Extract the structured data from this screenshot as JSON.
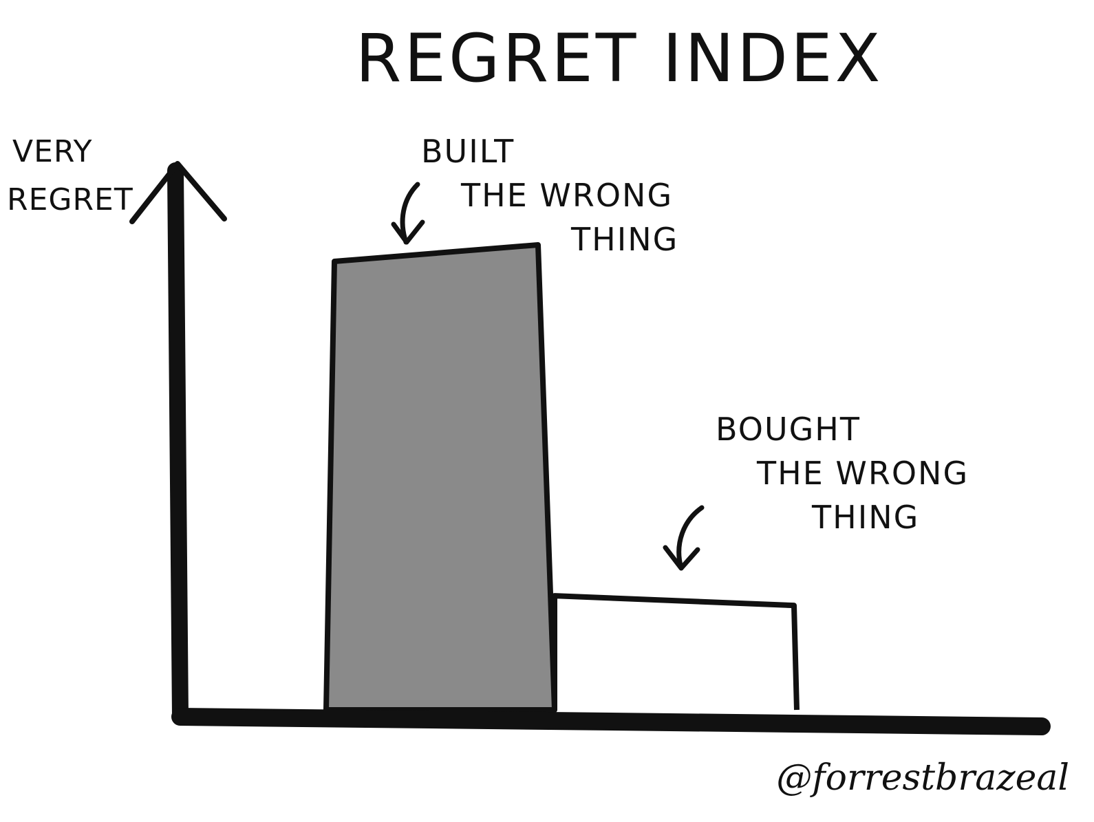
{
  "chart_data": {
    "type": "bar",
    "title": "REGRET INDEX",
    "ylabel": [
      "VERY",
      "REGRET"
    ],
    "xlabel": "",
    "categories": [
      "BUILT THE WRONG THING",
      "BOUGHT THE WRONG THING"
    ],
    "category_lines": [
      [
        "BUILT",
        "THE WRONG",
        "THING"
      ],
      [
        "BOUGHT",
        "THE WRONG",
        "THING"
      ]
    ],
    "values": [
      100,
      24
    ],
    "ylim": [
      0,
      100
    ],
    "bar_colors": [
      "#8a8a8a",
      "#ffffff"
    ],
    "grid": false,
    "legend": "none",
    "credit": "@forrestbrazeal"
  }
}
